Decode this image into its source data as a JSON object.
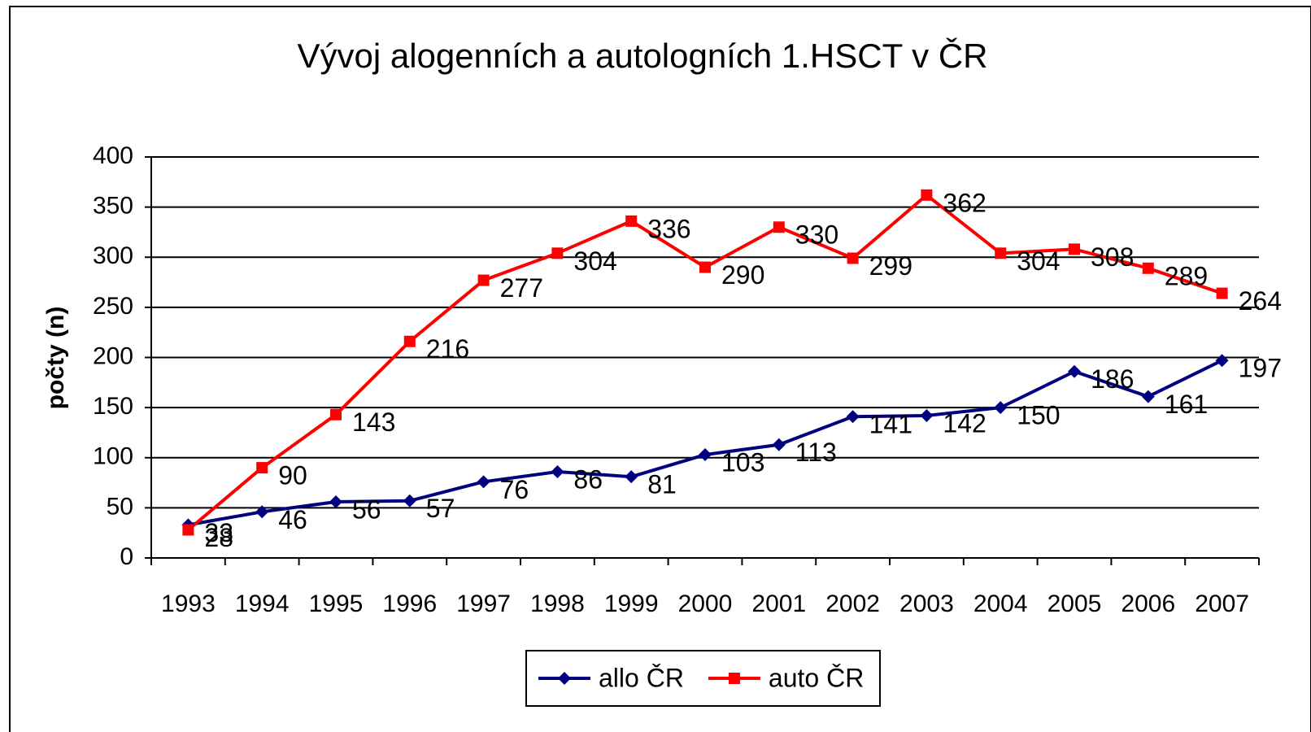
{
  "chart_data": {
    "type": "line",
    "title": "Vývoj alogenních a autologních 1.HSCT v ČR",
    "y_label": "počty (n)",
    "categories": [
      "1993",
      "1994",
      "1995",
      "1996",
      "1997",
      "1998",
      "1999",
      "2000",
      "2001",
      "2002",
      "2003",
      "2004",
      "2005",
      "2006",
      "2007"
    ],
    "series": [
      {
        "name": "allo ČR",
        "color": "#000080",
        "marker": "diamond",
        "values": [
          33,
          46,
          56,
          57,
          76,
          86,
          81,
          103,
          113,
          141,
          142,
          150,
          186,
          161,
          197
        ]
      },
      {
        "name": "auto ČR",
        "color": "#ff0000",
        "marker": "square",
        "values": [
          28,
          90,
          143,
          216,
          277,
          304,
          336,
          290,
          330,
          299,
          362,
          304,
          308,
          289,
          264
        ]
      }
    ],
    "ylim": [
      0,
      400
    ],
    "yticks": [
      0,
      50,
      100,
      150,
      200,
      250,
      300,
      350,
      400
    ],
    "grid": true,
    "legend": "bottom"
  }
}
